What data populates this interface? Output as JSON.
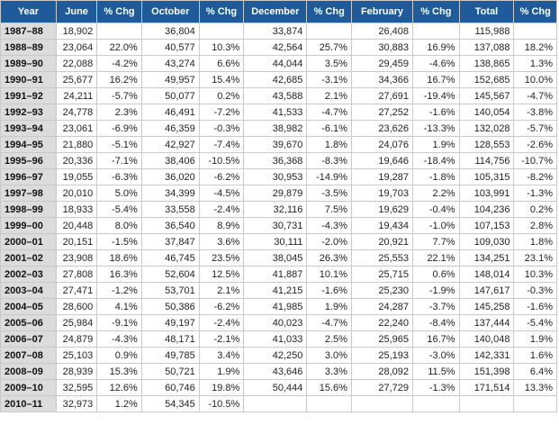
{
  "headers": [
    "Year",
    "June",
    "% Chg",
    "October",
    "% Chg",
    "December",
    "% Chg",
    "February",
    "% Chg",
    "Total",
    "% Chg"
  ],
  "rows": [
    [
      "1987–88",
      "18,902",
      "",
      "36,804",
      "",
      "33,874",
      "",
      "26,408",
      "",
      "115,988",
      ""
    ],
    [
      "1988–89",
      "23,064",
      "22.0%",
      "40,577",
      "10.3%",
      "42,564",
      "25.7%",
      "30,883",
      "16.9%",
      "137,088",
      "18.2%"
    ],
    [
      "1989–90",
      "22,088",
      "-4.2%",
      "43,274",
      "6.6%",
      "44,044",
      "3.5%",
      "29,459",
      "-4.6%",
      "138,865",
      "1.3%"
    ],
    [
      "1990–91",
      "25,677",
      "16.2%",
      "49,957",
      "15.4%",
      "42,685",
      "-3.1%",
      "34,366",
      "16.7%",
      "152,685",
      "10.0%"
    ],
    [
      "1991–92",
      "24,211",
      "-5.7%",
      "50,077",
      "0.2%",
      "43,588",
      "2.1%",
      "27,691",
      "-19.4%",
      "145,567",
      "-4.7%"
    ],
    [
      "1992–93",
      "24,778",
      "2.3%",
      "46,491",
      "-7.2%",
      "41,533",
      "-4.7%",
      "27,252",
      "-1.6%",
      "140,054",
      "-3.8%"
    ],
    [
      "1993–94",
      "23,061",
      "-6.9%",
      "46,359",
      "-0.3%",
      "38,982",
      "-6.1%",
      "23,626",
      "-13.3%",
      "132,028",
      "-5.7%"
    ],
    [
      "1994–95",
      "21,880",
      "-5.1%",
      "42,927",
      "-7.4%",
      "39,670",
      "1.8%",
      "24,076",
      "1.9%",
      "128,553",
      "-2.6%"
    ],
    [
      "1995–96",
      "20,336",
      "-7.1%",
      "38,406",
      "-10.5%",
      "36,368",
      "-8.3%",
      "19,646",
      "-18.4%",
      "114,756",
      "-10.7%"
    ],
    [
      "1996–97",
      "19,055",
      "-6.3%",
      "36,020",
      "-6.2%",
      "30,953",
      "-14.9%",
      "19,287",
      "-1.8%",
      "105,315",
      "-8.2%"
    ],
    [
      "1997–98",
      "20,010",
      "5.0%",
      "34,399",
      "-4.5%",
      "29,879",
      "-3.5%",
      "19,703",
      "2.2%",
      "103,991",
      "-1.3%"
    ],
    [
      "1998–99",
      "18,933",
      "-5.4%",
      "33,558",
      "-2.4%",
      "32,116",
      "7.5%",
      "19,629",
      "-0.4%",
      "104,236",
      "0.2%"
    ],
    [
      "1999–00",
      "20,448",
      "8.0%",
      "36,540",
      "8.9%",
      "30,731",
      "-4.3%",
      "19,434",
      "-1.0%",
      "107,153",
      "2.8%"
    ],
    [
      "2000–01",
      "20,151",
      "-1.5%",
      "37,847",
      "3.6%",
      "30,111",
      "-2.0%",
      "20,921",
      "7.7%",
      "109,030",
      "1.8%"
    ],
    [
      "2001–02",
      "23,908",
      "18.6%",
      "46,745",
      "23.5%",
      "38,045",
      "26.3%",
      "25,553",
      "22.1%",
      "134,251",
      "23.1%"
    ],
    [
      "2002–03",
      "27,808",
      "16.3%",
      "52,604",
      "12.5%",
      "41,887",
      "10.1%",
      "25,715",
      "0.6%",
      "148,014",
      "10.3%"
    ],
    [
      "2003–04",
      "27,471",
      "-1.2%",
      "53,701",
      "2.1%",
      "41,215",
      "-1.6%",
      "25,230",
      "-1.9%",
      "147,617",
      "-0.3%"
    ],
    [
      "2004–05",
      "28,600",
      "4.1%",
      "50,386",
      "-6.2%",
      "41,985",
      "1.9%",
      "24,287",
      "-3.7%",
      "145,258",
      "-1.6%"
    ],
    [
      "2005–06",
      "25,984",
      "-9.1%",
      "49,197",
      "-2.4%",
      "40,023",
      "-4.7%",
      "22,240",
      "-8.4%",
      "137,444",
      "-5.4%"
    ],
    [
      "2006–07",
      "24,879",
      "-4.3%",
      "48,171",
      "-2.1%",
      "41,033",
      "2.5%",
      "25,965",
      "16.7%",
      "140,048",
      "1.9%"
    ],
    [
      "2007–08",
      "25,103",
      "0.9%",
      "49,785",
      "3.4%",
      "42,250",
      "3.0%",
      "25,193",
      "-3.0%",
      "142,331",
      "1.6%"
    ],
    [
      "2008–09",
      "28,939",
      "15.3%",
      "50,721",
      "1.9%",
      "43,646",
      "3.3%",
      "28,092",
      "11.5%",
      "151,398",
      "6.4%"
    ],
    [
      "2009–10",
      "32,595",
      "12.6%",
      "60,746",
      "19.8%",
      "50,444",
      "15.6%",
      "27,729",
      "-1.3%",
      "171,514",
      "13.3%"
    ],
    [
      "2010–11",
      "32,973",
      "1.2%",
      "54,345",
      "-10.5%",
      "",
      "",
      "",
      "",
      "",
      ""
    ]
  ]
}
